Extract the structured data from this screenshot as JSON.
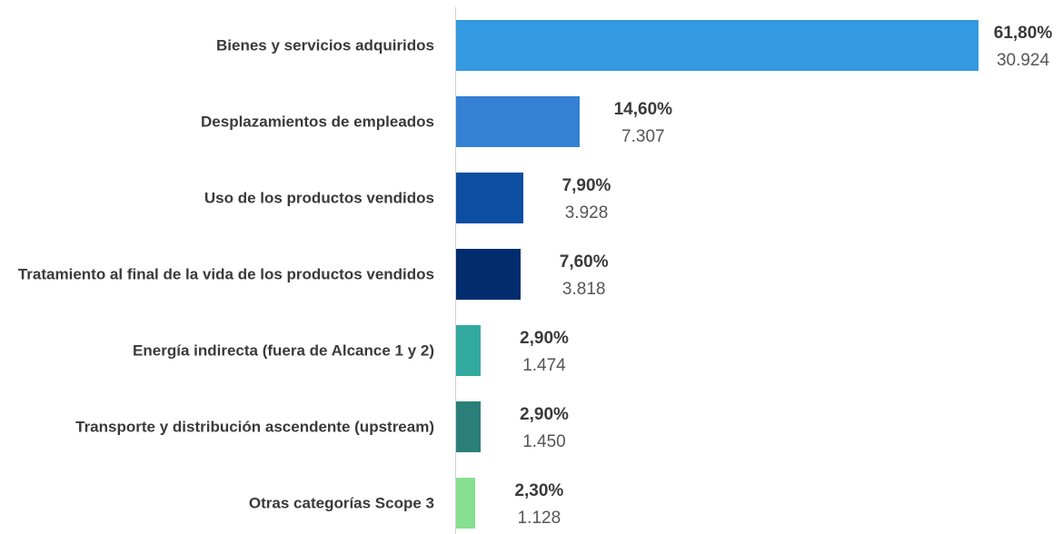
{
  "chart_data": {
    "type": "bar",
    "orientation": "horizontal",
    "categories": [
      "Bienes y servicios adquiridos",
      "Desplazamientos de empleados",
      "Uso de los productos vendidos",
      "Tratamiento al final de la vida de los productos vendidos",
      "Energía indirecta (fuera de Alcance 1 y 2)",
      "Transporte y distribución ascendente (upstream)",
      "Otras categorías Scope 3"
    ],
    "values": [
      61.8,
      14.6,
      7.9,
      7.6,
      2.9,
      2.9,
      2.3
    ],
    "value_labels": [
      "61,80%",
      "14,60%",
      "7,90%",
      "7,60%",
      "2,90%",
      "2,90%",
      "2,30%"
    ],
    "secondary_values": [
      30924,
      7307,
      3928,
      3818,
      1474,
      1450,
      1128
    ],
    "secondary_value_labels": [
      "30.924",
      "7.307",
      "3.928",
      "3.818",
      "1.474",
      "1.450",
      "1.128"
    ],
    "colors": [
      "#3399e0",
      "#3380d4",
      "#0b4ea2",
      "#012c6e",
      "#33aaa0",
      "#2a8078",
      "#86e08f"
    ],
    "xlim": [
      0,
      61.8
    ]
  }
}
